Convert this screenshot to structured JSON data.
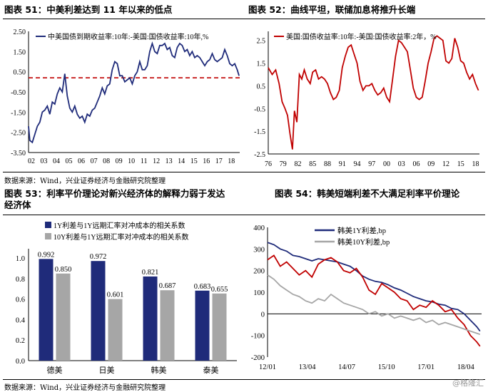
{
  "fig51": {
    "title": "图表 51：中美利差达到 11 年以来的低点",
    "chart_data": {
      "type": "line",
      "legend": "中美国债到期收益率:10年:-美国:国债收益率:10年,%",
      "x_ticks": [
        "02",
        "03",
        "04",
        "05",
        "06",
        "07",
        "08",
        "09",
        "10",
        "11",
        "12",
        "13",
        "14",
        "15",
        "16",
        "17",
        "18"
      ],
      "y_ticks": [
        "2.50",
        "1.50",
        "0.50",
        "-0.50",
        "-1.50",
        "-2.50",
        "-3.50"
      ],
      "ylim": [
        -3.5,
        2.5
      ],
      "xlim": [
        2002.0,
        2018.9
      ],
      "reference_line": 0.2,
      "colors": {
        "series": "#1f2b7a",
        "reference": "#c00000"
      },
      "series": [
        {
          "name": "中美国债到期收益率:10年:-美国:国债收益率:10年,%",
          "x": [
            2002.0,
            2002.1,
            2002.3,
            2002.5,
            2002.7,
            2002.9,
            2003.1,
            2003.3,
            2003.5,
            2003.7,
            2003.9,
            2004.1,
            2004.3,
            2004.5,
            2004.7,
            2004.9,
            2005.1,
            2005.3,
            2005.5,
            2005.7,
            2005.9,
            2006.1,
            2006.3,
            2006.5,
            2006.7,
            2006.9,
            2007.1,
            2007.3,
            2007.5,
            2007.7,
            2007.9,
            2008.1,
            2008.3,
            2008.5,
            2008.7,
            2008.9,
            2009.1,
            2009.3,
            2009.5,
            2009.7,
            2009.9,
            2010.1,
            2010.3,
            2010.5,
            2010.7,
            2010.9,
            2011.1,
            2011.3,
            2011.5,
            2011.7,
            2011.9,
            2012.1,
            2012.3,
            2012.5,
            2012.7,
            2012.9,
            2013.1,
            2013.3,
            2013.5,
            2013.7,
            2013.9,
            2014.1,
            2014.3,
            2014.5,
            2014.7,
            2014.9,
            2015.1,
            2015.3,
            2015.5,
            2015.7,
            2015.9,
            2016.1,
            2016.3,
            2016.5,
            2016.7,
            2016.9,
            2017.1,
            2017.3,
            2017.5,
            2017.7,
            2017.9,
            2018.1,
            2018.3,
            2018.5,
            2018.7,
            2018.85
          ],
          "y": [
            -2.2,
            -2.9,
            -3.0,
            -2.6,
            -2.2,
            -2.0,
            -1.5,
            -1.4,
            -1.2,
            -1.6,
            -1.0,
            -1.1,
            -0.6,
            -0.3,
            -0.5,
            0.4,
            -0.7,
            -1.3,
            -1.5,
            -1.2,
            -1.6,
            -1.8,
            -1.7,
            -2.0,
            -1.6,
            -1.7,
            -1.4,
            -1.3,
            -1.0,
            -0.7,
            -0.3,
            -0.6,
            -0.2,
            -0.1,
            0.6,
            1.0,
            0.9,
            0.3,
            0.3,
            0.0,
            0.1,
            0.2,
            -0.1,
            0.3,
            0.5,
            1.0,
            0.6,
            0.6,
            0.8,
            1.5,
            1.9,
            1.5,
            1.4,
            1.8,
            1.8,
            1.9,
            1.6,
            1.7,
            1.3,
            1.2,
            1.7,
            1.9,
            1.8,
            1.5,
            1.6,
            1.3,
            1.5,
            1.2,
            1.3,
            1.2,
            1.0,
            0.8,
            1.0,
            1.1,
            1.4,
            1.1,
            1.0,
            1.1,
            1.2,
            1.6,
            1.3,
            0.9,
            0.8,
            0.9,
            0.6,
            0.3
          ]
        }
      ]
    }
  },
  "fig52": {
    "title": "图表 52：曲线平坦，联储加息将推升长端",
    "chart_data": {
      "type": "line",
      "legend": "美国:国债收益率:10年:-美国:国债收益率:2年，%",
      "x_ticks": [
        "76",
        "79",
        "82",
        "85",
        "88",
        "91",
        "94",
        "97",
        "00",
        "03",
        "06",
        "09",
        "12",
        "15",
        "18"
      ],
      "y_ticks": [
        "2.5",
        "1.5",
        "0.5",
        "-0.5",
        "-1.5",
        "-2.5"
      ],
      "ylim": [
        -2.5,
        2.9
      ],
      "xlim": [
        1976.0,
        2018.8
      ],
      "colors": {
        "series": "#c00000"
      },
      "series": [
        {
          "name": "美国:国债收益率:10年:-美国:国债收益率:2年，%",
          "x": [
            1976.0,
            1976.8,
            1977.5,
            1978.2,
            1978.8,
            1979.4,
            1979.9,
            1980.4,
            1980.9,
            1981.3,
            1981.8,
            1982.3,
            1982.8,
            1983.3,
            1983.9,
            1984.5,
            1985.0,
            1985.6,
            1986.2,
            1986.8,
            1987.4,
            1988.0,
            1988.6,
            1989.2,
            1989.8,
            1990.4,
            1991.0,
            1991.6,
            1992.2,
            1992.8,
            1993.4,
            1994.0,
            1994.6,
            1995.2,
            1995.8,
            1996.4,
            1997.0,
            1997.6,
            1998.2,
            1998.8,
            1999.4,
            2000.0,
            2000.6,
            2001.2,
            2001.8,
            2002.4,
            2003.0,
            2003.6,
            2004.2,
            2004.8,
            2005.4,
            2006.0,
            2006.6,
            2007.2,
            2007.8,
            2008.4,
            2009.0,
            2009.6,
            2010.2,
            2010.8,
            2011.4,
            2012.0,
            2012.6,
            2013.2,
            2013.8,
            2014.4,
            2015.0,
            2015.6,
            2016.2,
            2016.8,
            2017.4,
            2018.0,
            2018.6
          ],
          "y": [
            1.3,
            1.0,
            1.2,
            0.6,
            -0.2,
            -0.5,
            -0.8,
            -1.6,
            -2.3,
            -0.6,
            -1.1,
            1.0,
            0.8,
            1.2,
            0.8,
            0.6,
            1.1,
            1.2,
            0.8,
            0.9,
            0.8,
            0.6,
            0.2,
            -0.1,
            0.0,
            0.3,
            1.3,
            1.8,
            2.2,
            2.3,
            1.9,
            1.5,
            0.7,
            0.3,
            0.5,
            0.5,
            0.6,
            0.3,
            0.1,
            0.2,
            0.4,
            0.0,
            -0.2,
            0.8,
            1.8,
            2.5,
            2.4,
            2.2,
            2.0,
            1.2,
            0.4,
            0.0,
            -0.1,
            0.0,
            0.7,
            1.5,
            2.0,
            2.6,
            2.7,
            2.6,
            2.5,
            1.6,
            1.5,
            1.7,
            2.6,
            2.2,
            1.6,
            1.5,
            1.1,
            0.8,
            1.0,
            0.6,
            0.3
          ]
        }
      ]
    }
  },
  "source1": "数据来源：Wind，兴业证券经济与金融研究院整理",
  "fig53": {
    "title_line1": "图表 53：利率平价理论对新兴经济体的解释力弱于发达",
    "title_line2": "经济体",
    "chart_data": {
      "type": "bar",
      "categories": [
        "德美",
        "日美",
        "韩美",
        "泰美"
      ],
      "series": [
        {
          "name": "1Y利差与1Y远期汇率对冲成本的相关系数",
          "values": [
            0.992,
            0.972,
            0.821,
            0.683
          ],
          "labels": [
            "0.992",
            "0.972",
            "0.821",
            "0.683"
          ],
          "color": "#1f2b7a"
        },
        {
          "name": "10Y利差与1Y远期汇率对冲成本的相关系数",
          "values": [
            0.85,
            0.601,
            0.687,
            0.655
          ],
          "labels": [
            "0.850",
            "0.601",
            "0.687",
            "0.655"
          ],
          "color": "#a6a6a6"
        }
      ],
      "y_ticks": [
        "0.0",
        "0.2",
        "0.4",
        "0.6",
        "0.8",
        "1.0"
      ],
      "ylim": [
        0,
        1.05
      ]
    }
  },
  "fig54": {
    "title": "图表 54：韩美短端利差不大满足利率平价理论",
    "chart_data": {
      "type": "line",
      "x_ticks": [
        "12/01",
        "13/04",
        "14/07",
        "15/10",
        "17/01",
        "18/04"
      ],
      "y_ticks": [
        "400",
        "300",
        "200",
        "100",
        "0",
        "-100",
        "-200"
      ],
      "ylim": [
        -200,
        400
      ],
      "xlim": [
        2012.0,
        2018.75
      ],
      "series": [
        {
          "name": "韩美1Y利差,bp",
          "color": "#1f2b7a",
          "x": [
            2012.0,
            2012.2,
            2012.4,
            2012.6,
            2012.8,
            2013.0,
            2013.2,
            2013.4,
            2013.6,
            2013.8,
            2014.0,
            2014.2,
            2014.4,
            2014.6,
            2014.8,
            2015.0,
            2015.2,
            2015.4,
            2015.6,
            2015.8,
            2016.0,
            2016.2,
            2016.4,
            2016.6,
            2016.8,
            2017.0,
            2017.2,
            2017.4,
            2017.6,
            2017.8,
            2018.0,
            2018.2,
            2018.4,
            2018.6,
            2018.7
          ],
          "y": [
            330,
            320,
            300,
            290,
            270,
            265,
            255,
            245,
            255,
            250,
            245,
            240,
            230,
            220,
            200,
            175,
            160,
            150,
            145,
            135,
            120,
            110,
            95,
            80,
            70,
            60,
            55,
            45,
            40,
            25,
            20,
            0,
            -30,
            -60,
            -80
          ]
        },
        {
          "name": "",
          "color": "#c00000",
          "x": [
            2012.0,
            2012.2,
            2012.4,
            2012.6,
            2012.8,
            2013.0,
            2013.2,
            2013.4,
            2013.6,
            2013.8,
            2014.0,
            2014.2,
            2014.4,
            2014.6,
            2014.8,
            2015.0,
            2015.2,
            2015.4,
            2015.6,
            2015.8,
            2016.0,
            2016.2,
            2016.4,
            2016.6,
            2016.8,
            2017.0,
            2017.2,
            2017.4,
            2017.6,
            2017.8,
            2018.0,
            2018.2,
            2018.4,
            2018.6,
            2018.7
          ],
          "y": [
            250,
            270,
            220,
            240,
            210,
            180,
            200,
            170,
            230,
            250,
            260,
            240,
            200,
            190,
            210,
            170,
            110,
            90,
            140,
            120,
            100,
            70,
            60,
            20,
            40,
            30,
            60,
            40,
            10,
            20,
            -20,
            -50,
            -100,
            -130,
            -150
          ]
        },
        {
          "name": "韩美10Y利差,bp",
          "color": "#a6a6a6",
          "x": [
            2012.0,
            2012.2,
            2012.4,
            2012.6,
            2012.8,
            2013.0,
            2013.2,
            2013.4,
            2013.6,
            2013.8,
            2014.0,
            2014.2,
            2014.4,
            2014.6,
            2014.8,
            2015.0,
            2015.2,
            2015.4,
            2015.6,
            2015.8,
            2016.0,
            2016.2,
            2016.4,
            2016.6,
            2016.8,
            2017.0,
            2017.2,
            2017.4,
            2017.6,
            2017.8,
            2018.0,
            2018.2,
            2018.4,
            2018.6,
            2018.7
          ],
          "y": [
            180,
            160,
            130,
            110,
            90,
            80,
            60,
            50,
            70,
            60,
            90,
            70,
            50,
            40,
            30,
            20,
            0,
            10,
            -10,
            0,
            -20,
            -10,
            -20,
            -30,
            -20,
            -40,
            -30,
            -50,
            -40,
            -50,
            -60,
            -70,
            -80,
            -90,
            -95
          ]
        }
      ]
    }
  },
  "source2": "数据来源：Wind，兴业证券经济与金融研究院整理",
  "watermark": "@格隆汇"
}
